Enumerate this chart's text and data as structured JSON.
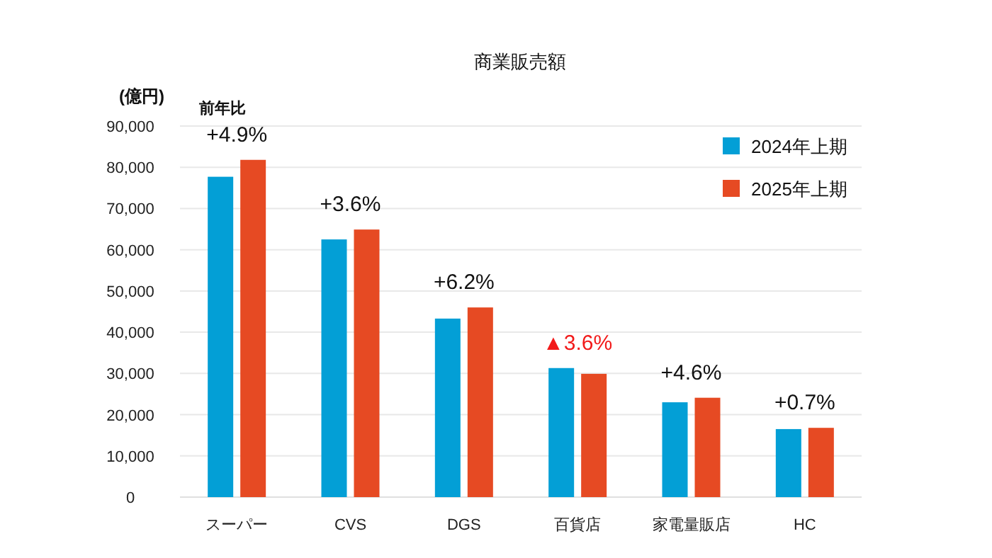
{
  "chart_data": {
    "type": "bar",
    "title": "商業販売額",
    "ylabel": "(億円)",
    "categories": [
      "スーパー",
      "CVS",
      "DGS",
      "百貨店",
      "家電量販店",
      "HC"
    ],
    "series": [
      {
        "name": "2024年上期",
        "color": "#039fd6",
        "values": [
          77700,
          62500,
          43300,
          31300,
          23000,
          16500
        ]
      },
      {
        "name": "2025年上期",
        "color": "#e64a23",
        "values": [
          81800,
          64900,
          46000,
          29900,
          24100,
          16800
        ]
      }
    ],
    "ylim": [
      0,
      90000
    ],
    "yticks": [
      {
        "value": 0,
        "label": "0"
      },
      {
        "value": 10000,
        "label": "10,000"
      },
      {
        "value": 20000,
        "label": "20,000"
      },
      {
        "value": 30000,
        "label": "30,000"
      },
      {
        "value": 40000,
        "label": "40,000"
      },
      {
        "value": 50000,
        "label": "50,000"
      },
      {
        "value": 60000,
        "label": "60,000"
      },
      {
        "value": 70000,
        "label": "70,000"
      },
      {
        "value": 80000,
        "label": "80,000"
      },
      {
        "value": 90000,
        "label": "90,000"
      }
    ],
    "grid": "y",
    "legend": "top right",
    "annotations": [
      "前年比",
      {
        "text": "+4.9%",
        "x": "スーパー",
        "y": 81800
      },
      {
        "text": "+3.6%",
        "x": "CVS",
        "y": 64900
      },
      {
        "text": "+6.2%",
        "x": "DGS",
        "y": 46000
      },
      {
        "text": "▲3.6%",
        "x": "百貨店",
        "y": 31300
      },
      {
        "text": "+4.6%",
        "x": "家電量販店",
        "y": 24100
      },
      {
        "text": "+0.7%",
        "x": "HC",
        "y": 16800
      }
    ]
  }
}
